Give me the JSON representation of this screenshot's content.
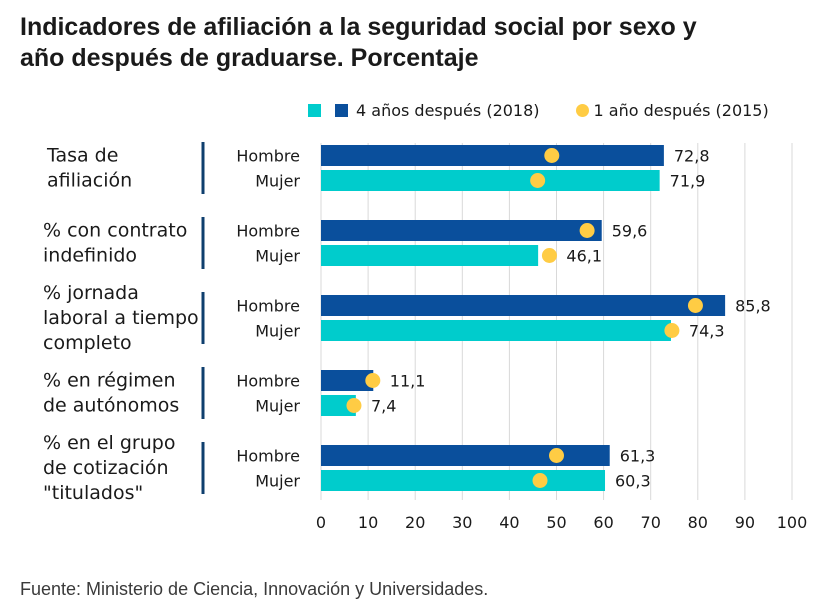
{
  "title_line1": "Indicadores de afiliación a la seguridad social por sexo y",
  "title_line2": "año después de graduarse. Porcentaje",
  "legend": {
    "mujer_label": "",
    "hombre_label": "4 años  después (2018)",
    "dot_label": "1 año después (2015)"
  },
  "colors": {
    "hombre": "#0a4f9c",
    "mujer": "#00cccc",
    "dot": "#ffcc44",
    "grid": "#d9d9d9",
    "group_line": "#0f3f6e"
  },
  "source": "Fuente: Ministerio de Ciencia, Innovación y Universidades.",
  "chart_data": {
    "type": "bar",
    "orientation": "horizontal",
    "xlim": [
      0,
      100
    ],
    "ticks": [
      0,
      10,
      20,
      30,
      40,
      50,
      60,
      70,
      80,
      90,
      100
    ],
    "grid": true,
    "legend_position": "top-right",
    "groups": [
      {
        "label_lines": [
          "Tasa de",
          "afiliación"
        ],
        "rows": [
          {
            "sex": "Hombre",
            "value": 72.8,
            "value_label": "72,8",
            "dot": 49
          },
          {
            "sex": "Mujer",
            "value": 71.9,
            "value_label": "71,9",
            "dot": 46
          }
        ]
      },
      {
        "label_lines": [
          "% con contrato",
          "indefinido"
        ],
        "rows": [
          {
            "sex": "Hombre",
            "value": 59.6,
            "value_label": "59,6",
            "dot": 56.5
          },
          {
            "sex": "Mujer",
            "value": 46.1,
            "value_label": "46,1",
            "dot": 48.5
          }
        ]
      },
      {
        "label_lines": [
          "% jornada",
          "laboral a tiempo",
          "completo"
        ],
        "rows": [
          {
            "sex": "Hombre",
            "value": 85.8,
            "value_label": "85,8",
            "dot": 79.5
          },
          {
            "sex": "Mujer",
            "value": 74.3,
            "value_label": "74,3",
            "dot": 74.5
          }
        ]
      },
      {
        "label_lines": [
          "% en régimen",
          "de autónomos"
        ],
        "rows": [
          {
            "sex": "Hombre",
            "value": 11.1,
            "value_label": "11,1",
            "dot": 11
          },
          {
            "sex": "Mujer",
            "value": 7.4,
            "value_label": "7,4",
            "dot": 7
          }
        ]
      },
      {
        "label_lines": [
          "% en el grupo",
          "de cotización",
          "\"titulados\""
        ],
        "rows": [
          {
            "sex": "Hombre",
            "value": 61.3,
            "value_label": "61,3",
            "dot": 50
          },
          {
            "sex": "Mujer",
            "value": 60.3,
            "value_label": "60,3",
            "dot": 46.5
          }
        ]
      }
    ]
  }
}
